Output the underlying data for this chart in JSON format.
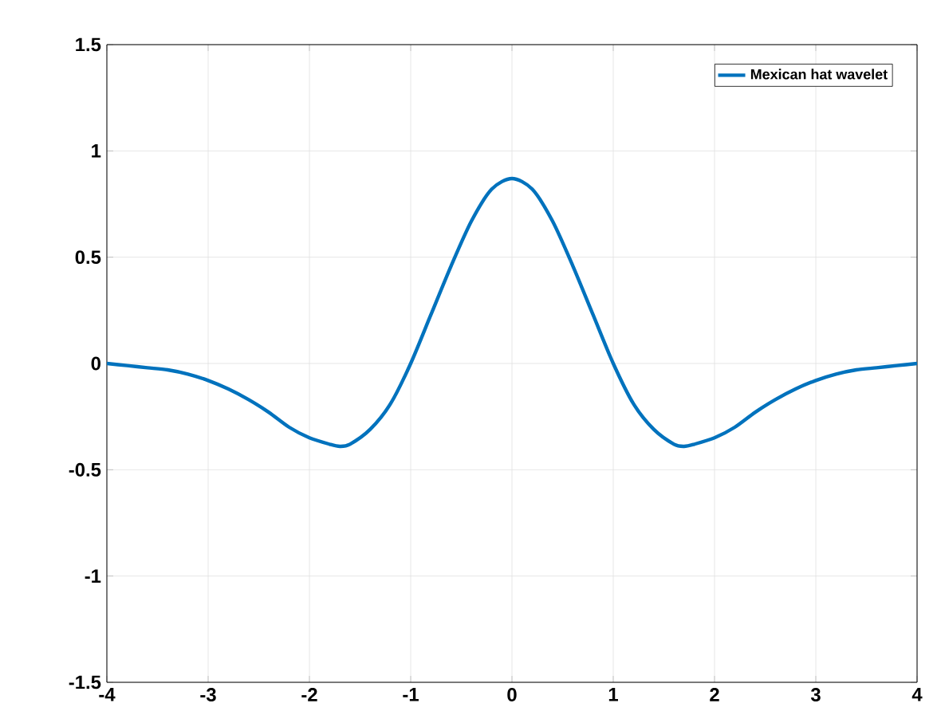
{
  "chart_data": {
    "type": "line",
    "x": [
      -4,
      -3.8,
      -3.6,
      -3.4,
      -3.2,
      -3,
      -2.8,
      -2.6,
      -2.4,
      -2.2,
      -2,
      -1.8,
      -1.7,
      -1.6,
      -1.4,
      -1.2,
      -1,
      -0.8,
      -0.6,
      -0.4,
      -0.2,
      0,
      0.2,
      0.4,
      0.6,
      0.8,
      1,
      1.2,
      1.4,
      1.6,
      1.7,
      1.8,
      2,
      2.2,
      2.4,
      2.6,
      2.8,
      3,
      3.2,
      3.4,
      3.6,
      3.8,
      4
    ],
    "series": [
      {
        "name": "Mexican hat wavelet",
        "color": "#0072bd",
        "values": [
          0.0,
          -0.01,
          -0.02,
          -0.03,
          -0.05,
          -0.08,
          -0.12,
          -0.17,
          -0.23,
          -0.3,
          -0.35,
          -0.38,
          -0.39,
          -0.38,
          -0.31,
          -0.19,
          0,
          0.23,
          0.46,
          0.67,
          0.82,
          0.87,
          0.82,
          0.67,
          0.46,
          0.23,
          0,
          -0.19,
          -0.31,
          -0.38,
          -0.39,
          -0.38,
          -0.35,
          -0.3,
          -0.23,
          -0.17,
          -0.12,
          -0.08,
          -0.05,
          -0.03,
          -0.02,
          -0.01,
          0.0
        ]
      }
    ],
    "xlim": [
      -4,
      4
    ],
    "ylim": [
      -1.5,
      1.5
    ],
    "xticks": [
      -4,
      -3,
      -2,
      -1,
      0,
      1,
      2,
      3,
      4
    ],
    "yticks": [
      -1.5,
      -1,
      -0.5,
      0,
      0.5,
      1,
      1.5
    ],
    "grid": true,
    "legend": "top right",
    "line_style": "solid",
    "marker": "none"
  }
}
